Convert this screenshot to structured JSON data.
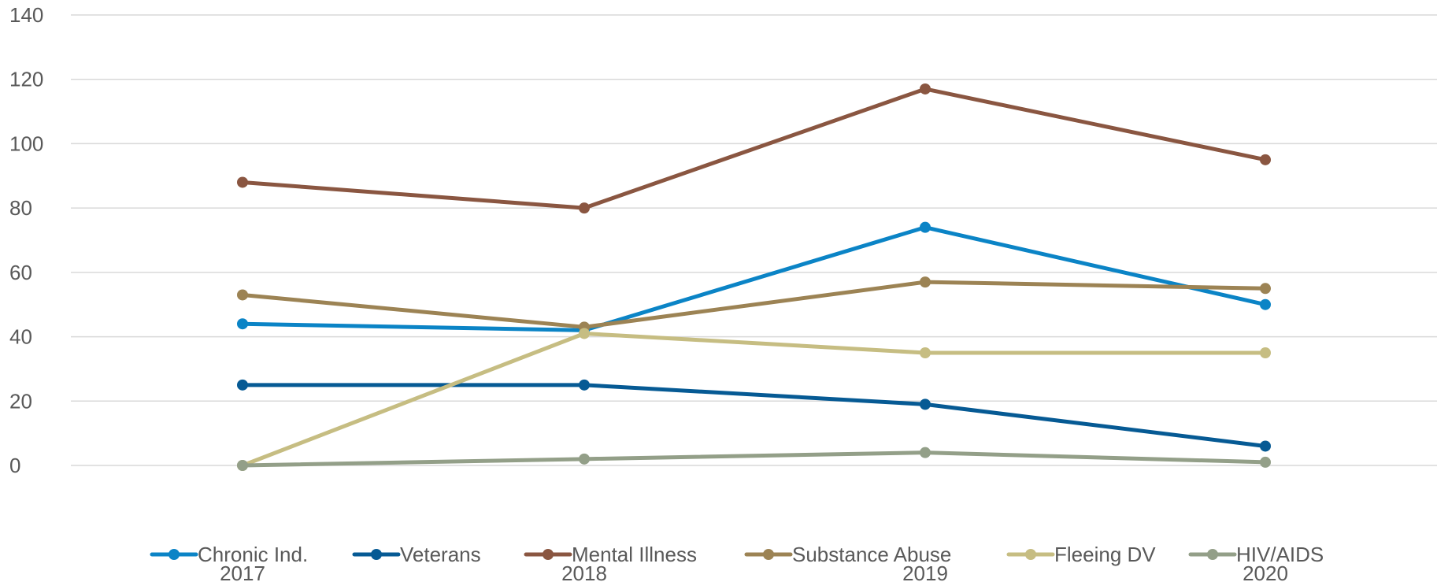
{
  "chart_data": {
    "type": "line",
    "title": "",
    "xlabel": "",
    "ylabel": "",
    "categories": [
      "2017",
      "2018",
      "2019",
      "2020"
    ],
    "ylim": [
      0,
      140
    ],
    "yticks": [
      0,
      20,
      40,
      60,
      80,
      100,
      120,
      140
    ],
    "grid": true,
    "legend_position": "bottom",
    "series": [
      {
        "name": "Chronic Ind.",
        "color": "#0b84c6",
        "values": [
          44,
          42,
          74,
          50
        ]
      },
      {
        "name": "Veterans",
        "color": "#065a94",
        "values": [
          25,
          25,
          19,
          6
        ]
      },
      {
        "name": "Mental Illness",
        "color": "#8a5641",
        "values": [
          88,
          80,
          117,
          95
        ]
      },
      {
        "name": "Substance Abuse",
        "color": "#9c8354",
        "values": [
          53,
          43,
          57,
          55
        ]
      },
      {
        "name": "Fleeing DV",
        "color": "#c6bd82",
        "values": [
          0,
          41,
          35,
          35
        ]
      },
      {
        "name": "HIV/AIDS",
        "color": "#939f88",
        "values": [
          0,
          2,
          4,
          1
        ]
      }
    ]
  }
}
